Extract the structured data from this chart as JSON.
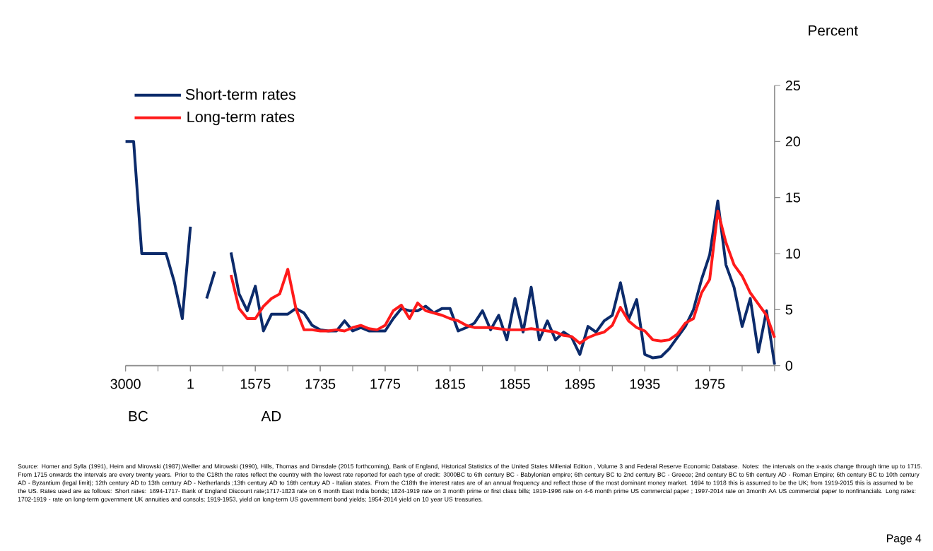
{
  "chart_data": {
    "type": "line",
    "ylabel": "Percent",
    "categories": [
      "3000",
      null,
      null,
      null,
      null,
      null,
      null,
      null,
      "1",
      null,
      null,
      null,
      null,
      null,
      null,
      null,
      "1575",
      null,
      null,
      null,
      null,
      null,
      null,
      null,
      "1735",
      null,
      null,
      null,
      null,
      null,
      null,
      null,
      "1775",
      null,
      null,
      null,
      null,
      null,
      null,
      null,
      "1815",
      null,
      null,
      null,
      null,
      null,
      null,
      null,
      "1855",
      null,
      null,
      null,
      null,
      null,
      null,
      null,
      "1895",
      null,
      null,
      null,
      null,
      null,
      null,
      null,
      "1935",
      null,
      null,
      null,
      null,
      null,
      null,
      null,
      "1975",
      null,
      null,
      null,
      null,
      null,
      null,
      null,
      null
    ],
    "series": [
      {
        "name": "Short-term rates",
        "color": "#0c2b6b",
        "values": [
          20,
          20,
          10,
          10,
          10,
          10,
          7.5,
          4.2,
          12.4,
          null,
          6,
          8.4,
          null,
          10.1,
          6.4,
          4.9,
          7.1,
          3.1,
          4.6,
          4.6,
          4.6,
          5.1,
          4.7,
          3.6,
          3.2,
          3.1,
          3.1,
          4.0,
          3.1,
          3.4,
          3.1,
          3.1,
          3.1,
          4.2,
          5.1,
          4.9,
          4.9,
          5.3,
          4.7,
          5.1,
          5.1,
          3.1,
          3.4,
          3.8,
          4.9,
          3.2,
          4.5,
          2.3,
          6.0,
          3.0,
          7.0,
          2.3,
          4.0,
          2.3,
          3.0,
          2.5,
          1.0,
          3.5,
          3.0,
          4.0,
          4.5,
          7.4,
          4.1,
          5.9,
          1.0,
          0.7,
          0.8,
          1.5,
          2.5,
          3.5,
          5.0,
          7.7,
          9.9,
          14.7,
          9.0,
          7.0,
          3.5,
          6.0,
          1.2,
          4.9,
          0.1
        ]
      },
      {
        "name": "Long-term rates",
        "color": "#ff1a1a",
        "values": [
          null,
          null,
          null,
          null,
          null,
          null,
          null,
          null,
          null,
          null,
          null,
          null,
          null,
          8.1,
          5.1,
          4.2,
          4.2,
          5.3,
          6.0,
          6.4,
          8.6,
          5.1,
          3.2,
          3.2,
          3.1,
          3.1,
          3.2,
          3.1,
          3.4,
          3.6,
          3.3,
          3.2,
          3.6,
          4.9,
          5.4,
          4.2,
          5.6,
          4.9,
          4.7,
          4.5,
          4.2,
          4.0,
          3.6,
          3.4,
          3.4,
          3.4,
          3.3,
          3.2,
          3.2,
          3.2,
          3.3,
          3.2,
          3.1,
          3.0,
          2.7,
          2.6,
          2.0,
          2.5,
          2.8,
          3.0,
          3.6,
          5.2,
          4.0,
          3.4,
          3.1,
          2.3,
          2.2,
          2.3,
          2.8,
          3.8,
          4.2,
          6.5,
          7.7,
          13.8,
          11.0,
          9.0,
          8.0,
          6.5,
          5.5,
          4.5,
          2.5
        ]
      }
    ],
    "ylim": [
      0,
      25
    ],
    "yticks": [
      0,
      5,
      10,
      15,
      20,
      25
    ],
    "legend": "top left",
    "annotations": [
      "BC",
      "AD",
      "Source: Homer and Sylla (1991), Heim and Mirowski (1987),Weiller and Mirowski (1990), Hills, Thomas and Dimsdale (2015 forthcoming), Bank of England, Historical Statistics of the United States Millenial Edition , Volume 3 and Federal Reserve Economic Database. Notes: the intervals on the x-axis change through time up to 1715. From 1715 onwards the intervals are every twenty years. Prior to the C18th the rates reflect the country with the lowest rate reported for each type of credit: 3000BC to 6th century BC - Babylonian empire; 6th century BC to 2nd century BC - Greece; 2nd century BC to 5th century AD - Roman Empire; 6th century BC to 10th century AD - Byzantium (legal limit); 12th century AD to 13th century AD - Netherlands ;13th century AD to 16th century AD - Italian states. From the C18th the interest rates are of an annual frequency and reflect those of the most dominant money market. 1694 to 1918 this is assumed to be the UK; from 1919-2015 this is assumed to be the US. Rates used are as follows: Short rates: 1694-1717- Bank of England Discount rate;1717-1823 rate on 6 month East India bonds; 1824-1919 rate on 3 month prime or first class bills; 1919-1996 rate on 4-6 month prime US commercial paper ; 1997-2014 rate on 3month AA US commercial paper to nonfinancials. Long rates: 1702-1919 - rate on long-term government UK annuities and consols; 1919-1953, yield on long-term US government bond yields; 1954-2014 yield on 10 year US treasuries.",
      "Page 4"
    ]
  }
}
